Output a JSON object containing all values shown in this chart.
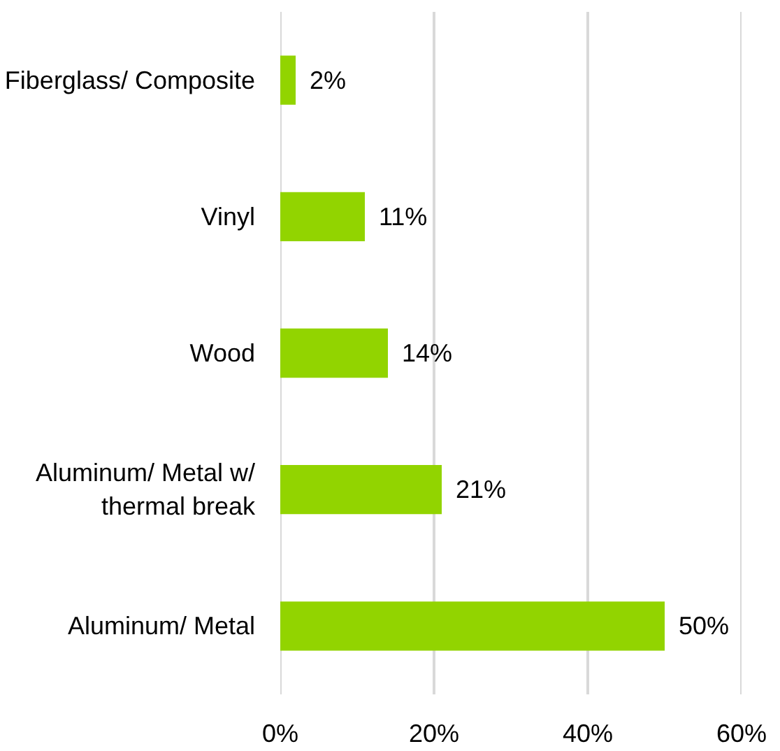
{
  "chart_data": {
    "type": "bar",
    "orientation": "horizontal",
    "categories": [
      "Fiberglass/ Composite",
      "Vinyl",
      "Wood",
      "Aluminum/ Metal w/ thermal break",
      "Aluminum/ Metal"
    ],
    "values": [
      2,
      11,
      14,
      21,
      50
    ],
    "value_labels": [
      "2%",
      "11%",
      "14%",
      "21%",
      "50%"
    ],
    "color": "#92d400",
    "xlim": [
      0,
      60
    ],
    "xticks": [
      {
        "value": 0,
        "label": "0%"
      },
      {
        "value": 20,
        "label": "20%"
      },
      {
        "value": 40,
        "label": "40%"
      },
      {
        "value": 60,
        "label": "60%"
      }
    ],
    "grid": "x"
  }
}
